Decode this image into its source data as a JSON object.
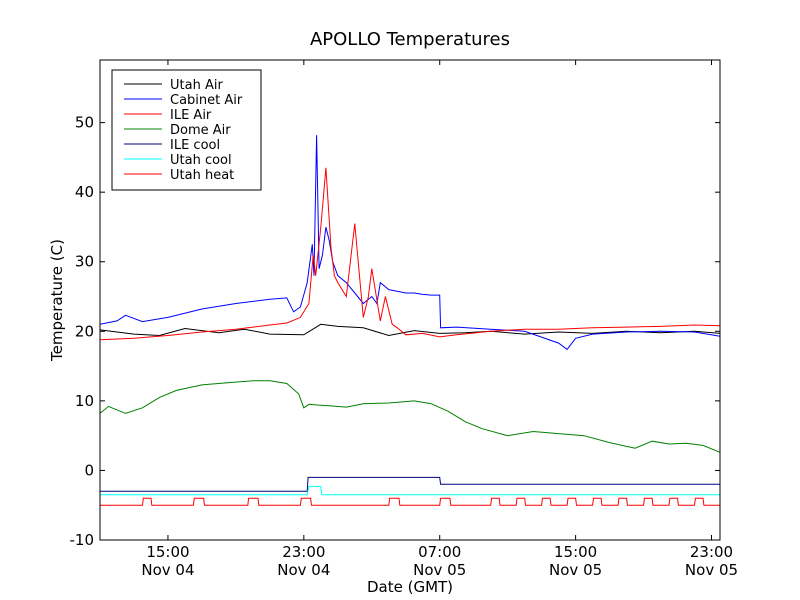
{
  "chart_data": {
    "type": "line",
    "title": "APOLLO Temperatures",
    "xlabel": "Date (GMT)",
    "ylabel": "Temperature (C)",
    "ylim": [
      -10,
      59
    ],
    "xlim_hours": [
      11.0,
      47.5
    ],
    "y_ticks": [
      "-10",
      "0",
      "10",
      "20",
      "30",
      "40",
      "50"
    ],
    "x_ticks": [
      {
        "hour": 15,
        "time": "15:00",
        "date": "Nov 04"
      },
      {
        "hour": 23,
        "time": "23:00",
        "date": "Nov 04"
      },
      {
        "hour": 31,
        "time": "07:00",
        "date": "Nov 05"
      },
      {
        "hour": 39,
        "time": "15:00",
        "date": "Nov 05"
      },
      {
        "hour": 47,
        "time": "23:00",
        "date": "Nov 05"
      }
    ],
    "legend_position": "top-left",
    "series": [
      {
        "name": "Utah Air",
        "color": "#000000",
        "x": [
          11.0,
          13.0,
          14.5,
          16.0,
          18.0,
          19.5,
          21.0,
          23.0,
          24.0,
          25.0,
          26.5,
          28.0,
          29.5,
          31.0,
          32.5,
          34.0,
          36.0,
          38.0,
          40.0,
          42.0,
          44.0,
          46.0,
          47.5
        ],
        "y": [
          20.2,
          19.6,
          19.4,
          20.4,
          19.8,
          20.3,
          19.6,
          19.5,
          21.0,
          20.7,
          20.5,
          19.4,
          20.1,
          19.7,
          19.8,
          20.0,
          19.6,
          19.9,
          19.7,
          20.0,
          19.8,
          20.0,
          19.7
        ]
      },
      {
        "name": "Cabinet Air",
        "color": "#0000ff",
        "x": [
          11.0,
          12.0,
          12.5,
          13.5,
          15.0,
          17.0,
          19.0,
          21.0,
          22.0,
          22.4,
          22.8,
          23.2,
          23.5,
          23.6,
          23.75,
          23.9,
          24.1,
          24.3,
          24.5,
          24.7,
          25.0,
          25.5,
          26.0,
          26.5,
          27.0,
          27.3,
          27.5,
          28.0,
          29.0,
          29.5,
          30.0,
          30.5,
          31.0,
          31.05,
          32.0,
          34.0,
          36.0,
          38.0,
          38.5,
          39.0,
          40.0,
          42.0,
          44.0,
          46.0,
          47.5
        ],
        "y": [
          21.0,
          21.5,
          22.3,
          21.4,
          22.0,
          23.2,
          24.0,
          24.6,
          24.8,
          22.8,
          23.5,
          27.0,
          32.5,
          28.0,
          48.2,
          29.0,
          31.0,
          35.0,
          33.0,
          30.0,
          28.0,
          27.0,
          25.5,
          24.0,
          25.0,
          24.0,
          27.0,
          26.0,
          25.5,
          25.5,
          25.3,
          25.2,
          25.2,
          20.5,
          20.6,
          20.3,
          20.0,
          18.3,
          17.4,
          19.0,
          19.6,
          19.9,
          20.0,
          19.9,
          19.3
        ]
      },
      {
        "name": "ILE Air",
        "color": "#ff0000",
        "x": [
          11.0,
          13.0,
          15.0,
          17.0,
          19.0,
          21.0,
          22.0,
          22.8,
          23.3,
          23.55,
          23.7,
          24.0,
          24.3,
          24.6,
          24.8,
          25.0,
          25.5,
          26.0,
          26.2,
          26.5,
          26.8,
          27.0,
          27.5,
          27.8,
          28.2,
          28.5,
          29.0,
          30.0,
          31.0,
          32.0,
          34.0,
          36.0,
          38.0,
          40.0,
          42.0,
          44.0,
          46.0,
          47.5
        ],
        "y": [
          18.8,
          19.0,
          19.4,
          19.9,
          20.3,
          20.9,
          21.2,
          22.0,
          24.0,
          31.0,
          28.0,
          35.0,
          43.5,
          32.0,
          28.0,
          27.0,
          25.0,
          35.5,
          30.0,
          22.0,
          25.0,
          29.0,
          21.5,
          25.0,
          21.0,
          20.5,
          19.5,
          19.7,
          19.2,
          19.5,
          20.0,
          20.3,
          20.3,
          20.5,
          20.6,
          20.7,
          20.9,
          20.8
        ]
      },
      {
        "name": "Dome Air",
        "color": "#008000",
        "x": [
          11.0,
          11.5,
          12.5,
          13.5,
          14.5,
          15.5,
          17.0,
          18.5,
          20.0,
          21.0,
          22.0,
          22.7,
          23.0,
          23.3,
          23.8,
          24.5,
          25.5,
          26.5,
          28.0,
          29.5,
          30.5,
          31.5,
          32.5,
          33.5,
          35.0,
          36.5,
          38.0,
          39.5,
          41.0,
          42.5,
          43.5,
          44.5,
          45.5,
          46.5,
          47.5
        ],
        "y": [
          8.2,
          9.2,
          8.2,
          9.0,
          10.5,
          11.5,
          12.3,
          12.6,
          12.9,
          12.9,
          12.5,
          11.0,
          9.0,
          9.5,
          9.4,
          9.3,
          9.1,
          9.6,
          9.7,
          10.0,
          9.6,
          8.5,
          7.0,
          6.0,
          5.0,
          5.6,
          5.3,
          5.0,
          4.0,
          3.2,
          4.2,
          3.8,
          3.9,
          3.6,
          2.6
        ]
      },
      {
        "name": "ILE cool",
        "color": "#000080",
        "x": [
          11.0,
          23.2,
          23.25,
          31.0,
          31.05,
          47.5
        ],
        "y": [
          -3.0,
          -3.0,
          -1.0,
          -1.0,
          -2.0,
          -2.0
        ]
      },
      {
        "name": "Utah cool",
        "color": "#00ffff",
        "x": [
          11.0,
          23.2,
          23.3,
          24.0,
          24.05,
          24.9,
          24.95,
          47.5
        ],
        "y": [
          -3.5,
          -3.5,
          -2.3,
          -2.3,
          -3.5,
          -3.5,
          -3.5,
          -3.5
        ]
      },
      {
        "name": "Utah heat",
        "color": "#ff0000",
        "x": [
          11.0,
          13.5,
          13.55,
          14.0,
          14.05,
          16.5,
          16.55,
          17.1,
          17.15,
          19.7,
          19.75,
          20.3,
          20.35,
          22.8,
          22.85,
          23.4,
          23.45,
          28.0,
          28.05,
          28.6,
          28.65,
          31.0,
          31.05,
          31.6,
          31.65,
          34.0,
          34.05,
          34.5,
          34.55,
          35.5,
          35.55,
          36.0,
          36.05,
          37.0,
          37.05,
          37.5,
          37.55,
          38.5,
          38.55,
          39.0,
          39.05,
          40.0,
          40.05,
          40.5,
          40.55,
          41.5,
          41.55,
          42.0,
          42.05,
          43.0,
          43.05,
          43.5,
          43.55,
          44.5,
          44.55,
          45.0,
          45.05,
          46.0,
          46.05,
          46.5,
          46.55,
          47.5
        ],
        "y": [
          -5.0,
          -5.0,
          -4.0,
          -4.0,
          -5.0,
          -5.0,
          -4.0,
          -4.0,
          -5.0,
          -5.0,
          -4.0,
          -4.0,
          -5.0,
          -5.0,
          -4.0,
          -4.0,
          -5.0,
          -5.0,
          -4.0,
          -4.0,
          -5.0,
          -5.0,
          -4.0,
          -4.0,
          -5.0,
          -5.0,
          -4.0,
          -4.0,
          -5.0,
          -5.0,
          -4.0,
          -4.0,
          -5.0,
          -5.0,
          -4.0,
          -4.0,
          -5.0,
          -5.0,
          -4.0,
          -4.0,
          -5.0,
          -5.0,
          -4.0,
          -4.0,
          -5.0,
          -5.0,
          -4.0,
          -4.0,
          -5.0,
          -5.0,
          -4.0,
          -4.0,
          -5.0,
          -5.0,
          -4.0,
          -4.0,
          -5.0,
          -5.0,
          -4.0,
          -4.0,
          -5.0,
          -5.0
        ]
      }
    ]
  }
}
